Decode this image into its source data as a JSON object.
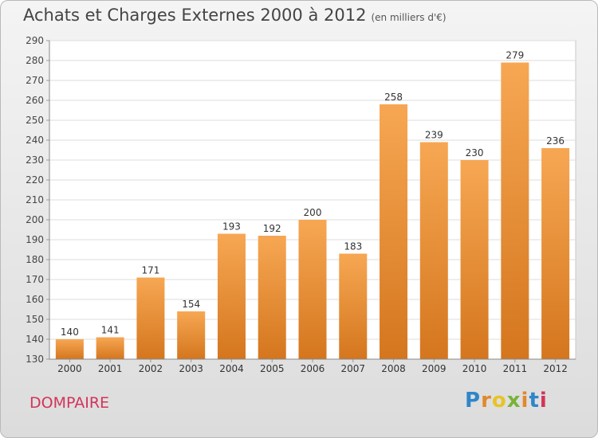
{
  "header": {
    "title": "Achats et Charges Externes 2000 à 2012",
    "subtitle": "(en milliers d'€)"
  },
  "footer": {
    "place": "DOMPAIRE",
    "brand": "Proxiti",
    "brand_colors": [
      "#2f86c9",
      "#e2882c",
      "#e8c325",
      "#7bb23a",
      "#e2882c",
      "#2f86c9",
      "#d2345a"
    ]
  },
  "chart_data": {
    "type": "bar",
    "categories": [
      "2000",
      "2001",
      "2002",
      "2003",
      "2004",
      "2005",
      "2006",
      "2007",
      "2008",
      "2009",
      "2010",
      "2011",
      "2012"
    ],
    "values": [
      140,
      141,
      171,
      154,
      193,
      192,
      200,
      183,
      258,
      239,
      230,
      279,
      236
    ],
    "yticks": [
      130,
      140,
      150,
      160,
      170,
      180,
      190,
      200,
      210,
      220,
      230,
      240,
      250,
      260,
      270,
      280,
      290
    ],
    "ylim": [
      130,
      290
    ],
    "grid": true,
    "bar_color_top": "#f7a753",
    "bar_color_bottom": "#d4761e"
  }
}
